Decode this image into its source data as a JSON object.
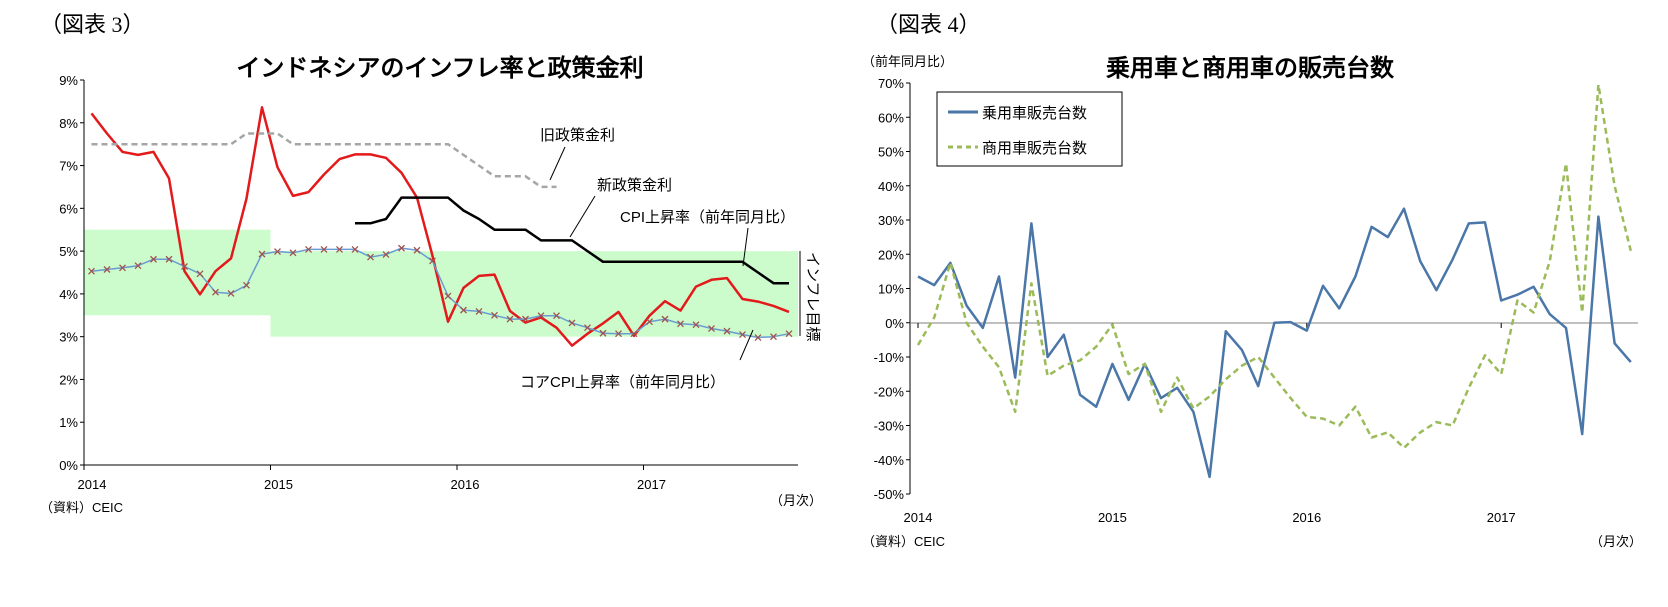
{
  "chart_data": [
    {
      "type": "line",
      "figure_label": "（図表 3）",
      "title": "インドネシアのインフレ率と政策金利",
      "source": "（資料）CEIC",
      "x_unit": "（月次）",
      "x_ticks": [
        "2014",
        "2015",
        "2016",
        "2017"
      ],
      "y_ticks": [
        "0%",
        "1%",
        "2%",
        "3%",
        "4%",
        "5%",
        "6%",
        "7%",
        "8%",
        "9%"
      ],
      "ylim": [
        0,
        9
      ],
      "x_range": [
        "2014-01",
        "2017-10"
      ],
      "target_band_label": "インフレ目標",
      "target_bands": [
        {
          "from": "2014-01",
          "to": "2014-12",
          "low": 3.5,
          "high": 5.5
        },
        {
          "from": "2015-01",
          "to": "2017-10",
          "low": 3.0,
          "high": 5.0
        }
      ],
      "series": [
        {
          "name": "CPI上昇率（前年同月比）",
          "color": "#e31a1c",
          "start": "2014-01",
          "values": [
            8.22,
            7.75,
            7.32,
            7.25,
            7.32,
            6.7,
            4.53,
            3.99,
            4.53,
            4.83,
            6.23,
            8.36,
            6.96,
            6.29,
            6.38,
            6.79,
            7.15,
            7.26,
            7.26,
            7.18,
            6.83,
            6.25,
            4.89,
            3.35,
            4.14,
            4.42,
            4.45,
            3.6,
            3.33,
            3.45,
            3.21,
            2.79,
            3.07,
            3.31,
            3.58,
            3.02,
            3.49,
            3.83,
            3.61,
            4.17,
            4.33,
            4.37,
            3.88,
            3.82,
            3.72,
            3.58
          ]
        },
        {
          "name": "コアCPI上昇率（前年同月比）",
          "color": "#6a9bd1",
          "marker_color": "#a0524e",
          "start": "2014-01",
          "values": [
            4.53,
            4.57,
            4.61,
            4.66,
            4.81,
            4.81,
            4.64,
            4.47,
            4.04,
            4.01,
            4.2,
            4.93,
            4.99,
            4.96,
            5.04,
            5.04,
            5.04,
            5.04,
            4.86,
            4.92,
            5.07,
            5.02,
            4.77,
            3.95,
            3.62,
            3.59,
            3.5,
            3.41,
            3.41,
            3.49,
            3.49,
            3.32,
            3.21,
            3.08,
            3.07,
            3.07,
            3.35,
            3.41,
            3.3,
            3.28,
            3.19,
            3.13,
            3.05,
            2.98,
            3.0,
            3.07
          ]
        },
        {
          "name": "旧政策金利",
          "color": "#a6a6a6",
          "dashed": true,
          "start": "2014-01",
          "values": [
            7.5,
            7.5,
            7.5,
            7.5,
            7.5,
            7.5,
            7.5,
            7.5,
            7.5,
            7.5,
            7.75,
            7.75,
            7.75,
            7.5,
            7.5,
            7.5,
            7.5,
            7.5,
            7.5,
            7.5,
            7.5,
            7.5,
            7.5,
            7.5,
            7.25,
            7.0,
            6.75,
            6.75,
            6.75,
            6.5,
            6.5
          ]
        },
        {
          "name": "新政策金利",
          "color": "#000000",
          "start": "2015-06",
          "values": [
            5.65,
            5.65,
            5.75,
            6.25,
            6.25,
            6.25,
            6.25,
            5.95,
            5.75,
            5.5,
            5.5,
            5.5,
            5.25,
            5.25,
            5.25,
            5.0,
            4.75,
            4.75,
            4.75,
            4.75,
            4.75,
            4.75,
            4.75,
            4.75,
            4.75,
            4.75,
            4.5,
            4.25,
            4.25
          ]
        }
      ]
    },
    {
      "type": "line",
      "figure_label": "（図表 4）",
      "title": "乗用車と商用車の販売台数",
      "ylabel": "（前年同月比）",
      "source": "（資料）CEIC",
      "x_unit": "（月次）",
      "x_ticks": [
        "2014",
        "2015",
        "2016",
        "2017"
      ],
      "y_ticks": [
        "-50%",
        "-40%",
        "-30%",
        "-20%",
        "-10%",
        "0%",
        "10%",
        "20%",
        "30%",
        "40%",
        "50%",
        "60%",
        "70%"
      ],
      "ylim": [
        -50,
        70
      ],
      "x_range": [
        "2014-01",
        "2017-09"
      ],
      "legend": "top-left",
      "series": [
        {
          "name": "乗用車販売台数",
          "color": "#4a76a8",
          "start": "2014-01",
          "values": [
            13.5,
            11,
            17.5,
            5,
            -1.5,
            13.5,
            -16,
            29,
            -10,
            -3.5,
            -21,
            -24.5,
            -12,
            -22.5,
            -12,
            -22,
            -19,
            -26,
            -45,
            -2.5,
            -8,
            -18.5,
            0,
            0.2,
            -2.3,
            10.8,
            4.2,
            13.5,
            28,
            25,
            33.3,
            18,
            9.5,
            18.5,
            29,
            29.3,
            6.5,
            8.2,
            10.5,
            2.5,
            -1.5,
            -32.5,
            31,
            -6,
            -11.5
          ]
        },
        {
          "name": "商用車販売台数",
          "color": "#9bbb59",
          "dashed": true,
          "start": "2014-01",
          "values": [
            -6.5,
            1.5,
            17.5,
            0,
            -7,
            -13,
            -26,
            11.5,
            -15.5,
            -12.5,
            -11,
            -7,
            -0.5,
            -15,
            -12,
            -26,
            -16,
            -25,
            -21.5,
            -16.5,
            -12.5,
            -10,
            -16,
            -22,
            -27.5,
            -28,
            -30,
            -24.5,
            -33.5,
            -32,
            -36.5,
            -32,
            -29,
            -30,
            -19,
            -9.5,
            -15,
            6.5,
            3,
            18,
            46.5,
            3,
            69.5,
            40,
            21
          ]
        }
      ]
    }
  ]
}
